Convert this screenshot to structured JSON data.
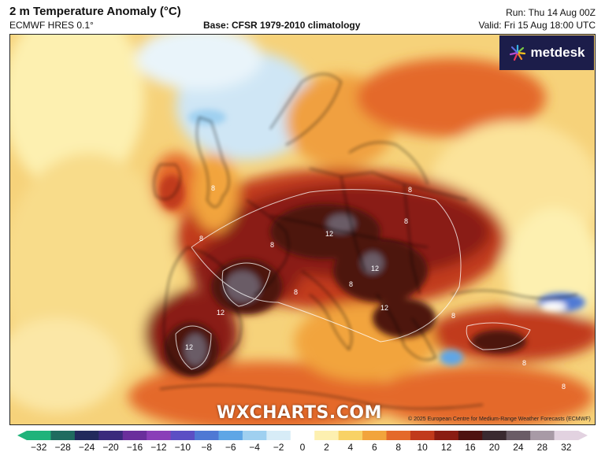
{
  "header": {
    "title": "2 m Temperature Anomaly (°C)",
    "model": "ECMWF HRES 0.1°",
    "base": "Base: CFSR 1979-2010 climatology",
    "run": "Run: Thu 14 Aug 00Z",
    "valid": "Valid: Fri 15 Aug 18:00 UTC"
  },
  "branding": {
    "logo_text": "metdesk",
    "watermark": "WXCHARTS.COM",
    "copyright": "© 2025 European Centre for Medium-Range Weather Forecasts (ECMWF)"
  },
  "legend": {
    "ticks": [
      "−32",
      "−28",
      "−24",
      "−20",
      "−16",
      "−12",
      "−10",
      "−8",
      "−6",
      "−4",
      "−2",
      "0",
      "2",
      "4",
      "6",
      "8",
      "10",
      "12",
      "16",
      "20",
      "24",
      "28",
      "32"
    ],
    "colors": [
      "#1fb37a",
      "#1f6b5f",
      "#222a5c",
      "#3b2a7c",
      "#6a2f9c",
      "#8a3fb8",
      "#5b4fc4",
      "#4f79d4",
      "#5ea6e6",
      "#9fd0f0",
      "#d7ecf7",
      "#ffffff",
      "#fdf0b0",
      "#f8d266",
      "#f2a43c",
      "#e4692a",
      "#c13a1c",
      "#8a1c12",
      "#4e1210",
      "#3a2a30",
      "#6a5c66",
      "#a89aa6",
      "#e2d2e0"
    ]
  },
  "map_labels": [
    "8",
    "8",
    "12",
    "12",
    "12",
    "8",
    "8",
    "8",
    "12",
    "8",
    "8",
    "8",
    "8",
    "8",
    "12"
  ]
}
